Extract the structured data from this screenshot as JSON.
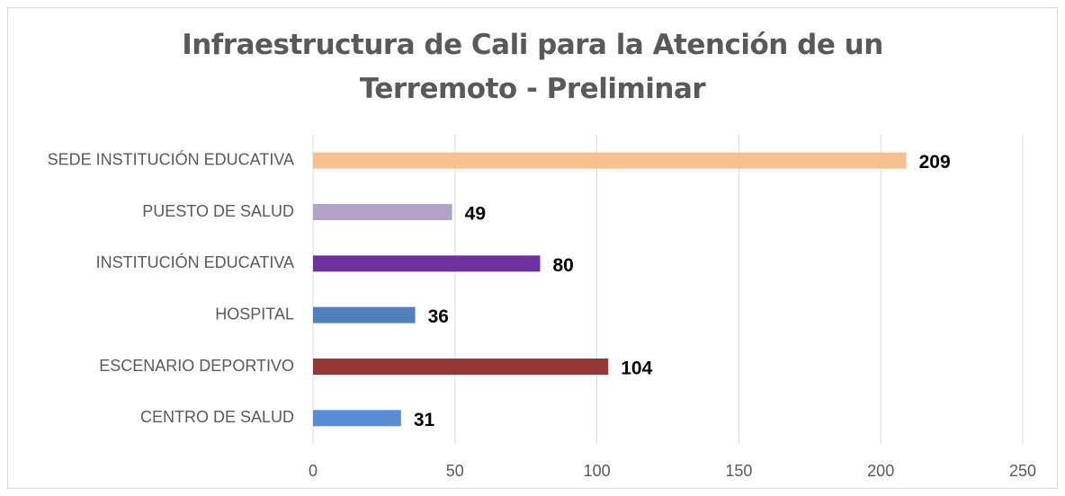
{
  "chart_data": {
    "type": "bar",
    "title": "Infraestructura de Cali para la Atención de un Terremoto - Preliminar",
    "categories": [
      "SEDE INSTITUCIÓN EDUCATIVA",
      "PUESTO DE SALUD",
      "INSTITUCIÓN EDUCATIVA",
      "HOSPITAL",
      "ESCENARIO DEPORTIVO",
      "CENTRO DE SALUD"
    ],
    "values": [
      209,
      49,
      80,
      36,
      104,
      31
    ],
    "colors": [
      "#F9C08F",
      "#B3A2C7",
      "#7030A0",
      "#4F81BD",
      "#953735",
      "#558ED5"
    ],
    "xlim": [
      0,
      250
    ],
    "xticks": [
      0,
      50,
      100,
      150,
      200,
      250
    ],
    "grid": true
  }
}
